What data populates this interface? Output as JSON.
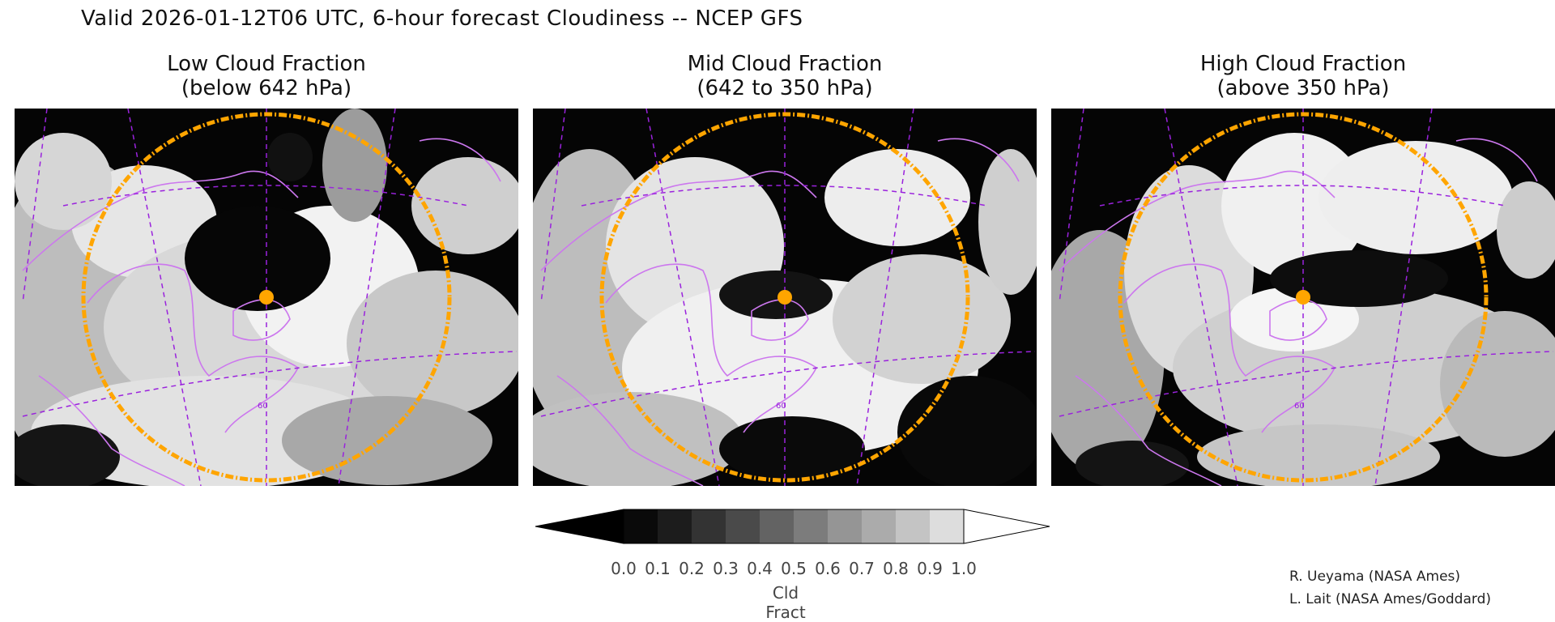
{
  "title": "Valid 2026-01-12T06 UTC, 6-hour forecast Cloudiness -- NCEP GFS",
  "panels": [
    {
      "title_line1": "Low Cloud Fraction",
      "title_line2": "(below 642 hPa)",
      "grid_label": "60"
    },
    {
      "title_line1": "Mid Cloud Fraction",
      "title_line2": "(642 to 350 hPa)",
      "grid_label": "60"
    },
    {
      "title_line1": "High Cloud Fraction",
      "title_line2": "(above 350 hPa)",
      "grid_label": "60"
    }
  ],
  "colorbar": {
    "ticks": [
      "0.0",
      "0.1",
      "0.2",
      "0.3",
      "0.4",
      "0.5",
      "0.6",
      "0.7",
      "0.8",
      "0.9",
      "1.0"
    ],
    "colors": [
      "#0a0a0a",
      "#1c1c1c",
      "#333333",
      "#4a4a4a",
      "#636363",
      "#7c7c7c",
      "#959595",
      "#ababab",
      "#c4c4c4",
      "#dddddd"
    ],
    "under_color": "#000000",
    "over_color": "#ffffff",
    "unit": "Cld Fract"
  },
  "credits": [
    "R. Ueyama (NASA Ames)",
    "L. Lait (NASA Ames/Goddard)"
  ],
  "colors": {
    "coastline": "#cc77ee",
    "gridline": "#9a22dd",
    "range_ring": "#ffa500",
    "marker": "#ffa500"
  }
}
